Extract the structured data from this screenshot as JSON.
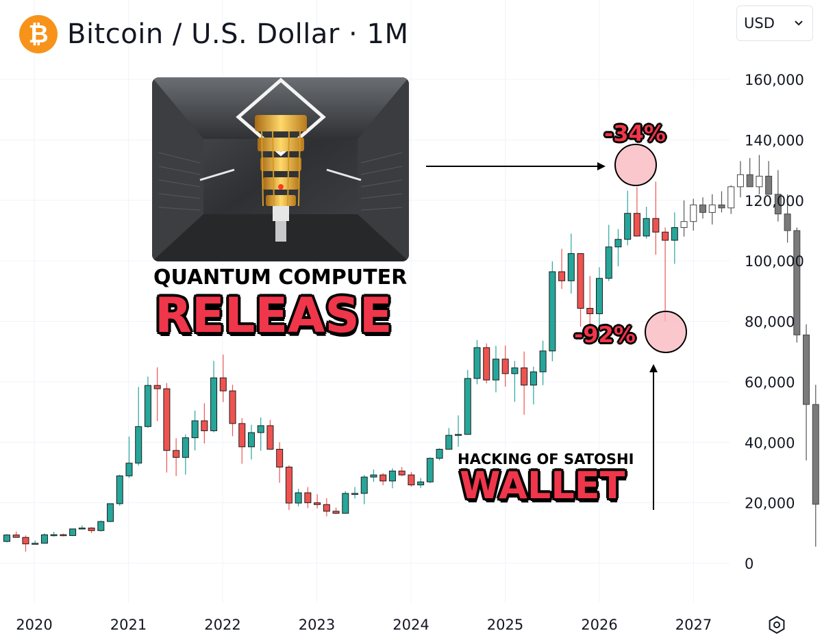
{
  "header": {
    "logo_symbol": "₿",
    "title": "Bitcoin / U.S. Dollar · 1M",
    "currency": "USD",
    "currency_icon": "chevron-down-icon"
  },
  "annotations": {
    "caption_top_small": "QUANTUM COMPUTER",
    "caption_top_big": "RELEASE",
    "caption_bottom_small": "HACKING OF SATOSHI",
    "caption_bottom_big": "WALLET",
    "drop_1": "-34%",
    "drop_2": "-92%",
    "colors": {
      "red": "#f0364a",
      "circle_fill": "#f8b4bc"
    }
  },
  "chart_data": {
    "type": "candlestick",
    "title": "Bitcoin / U.S. Dollar · 1M",
    "y_ticks": [
      0,
      20000,
      40000,
      60000,
      80000,
      100000,
      120000,
      140000,
      160000
    ],
    "y_tick_labels": [
      "0",
      "20,000",
      "40,000",
      "60,000",
      "80,000",
      "100,000",
      "120,000",
      "140,000",
      "160,000"
    ],
    "x_ticks": [
      "2020",
      "2021",
      "2022",
      "2023",
      "2024",
      "2025",
      "2026",
      "2027"
    ],
    "ylim": [
      -5000,
      172000
    ],
    "grid": true,
    "colors": {
      "up": "#26a69a",
      "down": "#ef5350",
      "projected": "#8a8a8a",
      "grid": "#f0f3fa"
    },
    "candles_ohlc": [
      [
        7200,
        9600,
        6900,
        9350
      ],
      [
        9350,
        10500,
        8500,
        8550
      ],
      [
        8550,
        9200,
        3800,
        6400
      ],
      [
        6400,
        7500,
        6200,
        6600
      ],
      [
        6600,
        9900,
        6500,
        9400
      ],
      [
        9400,
        10400,
        8800,
        9450
      ],
      [
        9450,
        9800,
        8900,
        9150
      ],
      [
        9150,
        11400,
        9000,
        11350
      ],
      [
        11350,
        12500,
        11200,
        11650
      ],
      [
        11650,
        11900,
        10000,
        10800
      ],
      [
        10800,
        14100,
        10500,
        13800
      ],
      [
        13800,
        19800,
        13600,
        19700
      ],
      [
        19700,
        29300,
        19000,
        28900
      ],
      [
        28900,
        41900,
        28200,
        33100
      ],
      [
        33100,
        58300,
        32300,
        45200
      ],
      [
        45200,
        61700,
        44800,
        58800
      ],
      [
        58800,
        64800,
        47000,
        57700
      ],
      [
        57700,
        59600,
        30000,
        37300
      ],
      [
        37300,
        41300,
        28800,
        35000
      ],
      [
        35000,
        42600,
        29300,
        41500
      ],
      [
        41500,
        50500,
        37300,
        47100
      ],
      [
        47100,
        52900,
        39600,
        43800
      ],
      [
        43800,
        66900,
        43300,
        61300
      ],
      [
        61300,
        69000,
        53300,
        57000
      ],
      [
        57000,
        59000,
        42000,
        46200
      ],
      [
        46200,
        48000,
        32900,
        38500
      ],
      [
        38500,
        45800,
        34300,
        43200
      ],
      [
        43200,
        48200,
        37200,
        45500
      ],
      [
        45500,
        47400,
        37600,
        37700
      ],
      [
        37700,
        40000,
        26600,
        31800
      ],
      [
        31800,
        32400,
        17600,
        19900
      ],
      [
        19900,
        24600,
        18800,
        23300
      ],
      [
        23300,
        25200,
        18200,
        20000
      ],
      [
        20000,
        22800,
        18100,
        19400
      ],
      [
        19400,
        21500,
        15500,
        17200
      ],
      [
        17200,
        18400,
        16300,
        16500
      ],
      [
        16500,
        23900,
        16500,
        23100
      ],
      [
        23100,
        25200,
        21400,
        23100
      ],
      [
        23100,
        29200,
        19500,
        28500
      ],
      [
        28500,
        31000,
        26900,
        29200
      ],
      [
        29200,
        29800,
        25800,
        27200
      ],
      [
        27200,
        31400,
        24800,
        30500
      ],
      [
        30500,
        31800,
        28800,
        29200
      ],
      [
        29200,
        30200,
        25300,
        25900
      ],
      [
        25900,
        28200,
        24900,
        26900
      ],
      [
        26900,
        35000,
        26500,
        34700
      ],
      [
        34700,
        38000,
        34000,
        37700
      ],
      [
        37700,
        44700,
        37600,
        42300
      ],
      [
        42300,
        48900,
        38500,
        42600
      ],
      [
        42600,
        63900,
        42500,
        61100
      ],
      [
        61100,
        73800,
        59200,
        71300
      ],
      [
        71300,
        72700,
        59500,
        60600
      ],
      [
        60600,
        71900,
        56500,
        67500
      ],
      [
        67500,
        72000,
        58400,
        62700
      ],
      [
        62700,
        66900,
        53400,
        64600
      ],
      [
        64600,
        70000,
        49100,
        58900
      ],
      [
        58900,
        65000,
        52500,
        63300
      ],
      [
        63300,
        73600,
        58900,
        70200
      ],
      [
        70200,
        99800,
        66800,
        96400
      ],
      [
        96400,
        104000,
        90700,
        93400
      ],
      [
        93400,
        109000,
        89200,
        102400
      ],
      [
        102400,
        102500,
        78200,
        84300
      ],
      [
        84300,
        95000,
        76600,
        82500
      ],
      [
        82500,
        97900,
        74400,
        94200
      ],
      [
        94200,
        111900,
        93300,
        104600
      ],
      [
        104600,
        110500,
        98200,
        107100
      ],
      [
        107100,
        123200,
        105100,
        115700
      ],
      [
        115700,
        124400,
        108000,
        108200
      ],
      [
        108200,
        117900,
        107300,
        114000
      ],
      [
        114000,
        126200,
        102000,
        109500
      ],
      [
        109500,
        111000,
        80000,
        106800
      ],
      [
        106800,
        116000,
        99000,
        111000
      ]
    ],
    "projected_candles_ohlc": [
      [
        111000,
        120000,
        108000,
        113000
      ],
      [
        113000,
        120500,
        110000,
        118500
      ],
      [
        118500,
        121000,
        114000,
        116000
      ],
      [
        116000,
        122000,
        112000,
        118500
      ],
      [
        118500,
        123000,
        116000,
        117500
      ],
      [
        117500,
        125000,
        115500,
        124500
      ],
      [
        124500,
        133000,
        121000,
        128500
      ],
      [
        128500,
        134000,
        125000,
        124500
      ],
      [
        124500,
        135000,
        122000,
        128000
      ],
      [
        128000,
        133000,
        124000,
        122000
      ],
      [
        122000,
        130000,
        113000,
        115500
      ],
      [
        115500,
        122000,
        106000,
        110000
      ],
      [
        110000,
        111000,
        73000,
        75500
      ],
      [
        75500,
        79000,
        34000,
        52500
      ],
      [
        52500,
        59000,
        5500,
        19500
      ]
    ]
  }
}
